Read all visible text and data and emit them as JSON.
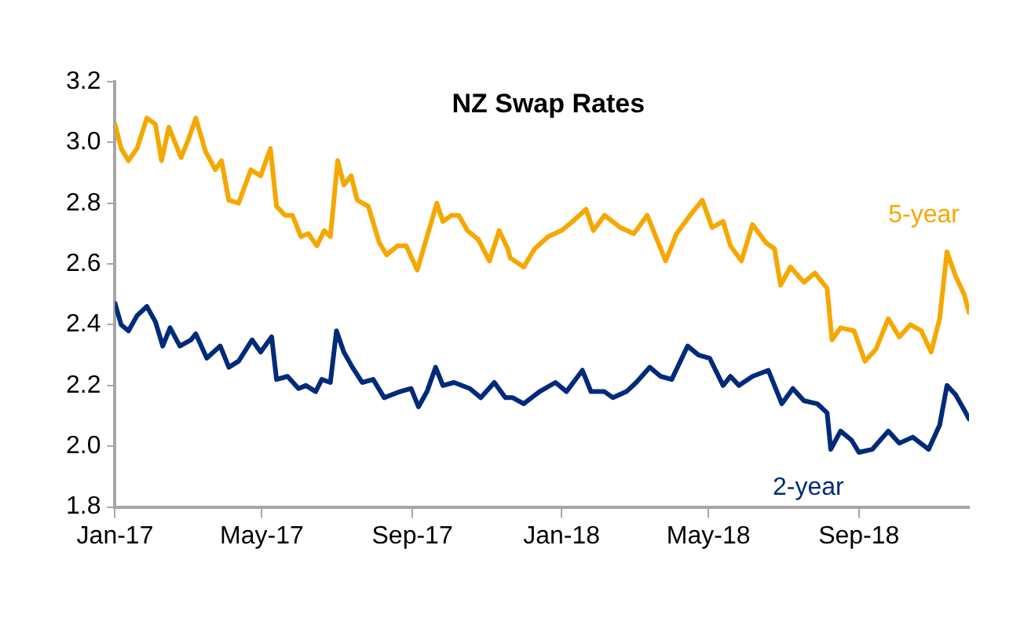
{
  "chart_data": {
    "type": "line",
    "title": "NZ Swap Rates",
    "xlim": [
      "2017-01-01",
      "2018-11-30"
    ],
    "xticks": [
      {
        "value": "2017-01-01",
        "label": "Jan-17"
      },
      {
        "value": "2017-05-01",
        "label": "May-17"
      },
      {
        "value": "2017-09-01",
        "label": "Sep-17"
      },
      {
        "value": "2018-01-01",
        "label": "Jan-18"
      },
      {
        "value": "2018-05-01",
        "label": "May-18"
      },
      {
        "value": "2018-09-01",
        "label": "Sep-18"
      }
    ],
    "ylim": [
      1.8,
      3.2
    ],
    "yticks": [
      {
        "value": 1.8,
        "label": "1.8"
      },
      {
        "value": 2,
        "label": "2.0"
      },
      {
        "value": 2.2,
        "label": "2.2"
      },
      {
        "value": 2.4,
        "label": "2.4"
      },
      {
        "value": 2.6,
        "label": "2.6"
      },
      {
        "value": 2.8,
        "label": "2.8"
      },
      {
        "value": 3,
        "label": "3.0"
      },
      {
        "value": 3.2,
        "label": "3.2"
      }
    ],
    "grid": false,
    "legend": false,
    "marker": "none",
    "line_style": "solid",
    "series": [
      {
        "name": "5-year",
        "color": "#f5a800",
        "x": [
          "2017-01-01",
          "2017-01-06",
          "2017-01-12",
          "2017-01-19",
          "2017-01-27",
          "2017-02-03",
          "2017-02-08",
          "2017-02-14",
          "2017-02-24",
          "2017-03-02",
          "2017-03-08",
          "2017-03-16",
          "2017-03-24",
          "2017-03-29",
          "2017-04-04",
          "2017-04-12",
          "2017-04-22",
          "2017-04-30",
          "2017-05-08",
          "2017-05-13",
          "2017-05-20",
          "2017-05-26",
          "2017-06-02",
          "2017-06-08",
          "2017-06-15",
          "2017-06-21",
          "2017-06-26",
          "2017-07-02",
          "2017-07-07",
          "2017-07-13",
          "2017-07-18",
          "2017-07-27",
          "2017-08-05",
          "2017-08-11",
          "2017-08-20",
          "2017-08-27",
          "2017-09-05",
          "2017-09-13",
          "2017-09-21",
          "2017-09-26",
          "2017-10-03",
          "2017-10-09",
          "2017-10-16",
          "2017-10-25",
          "2017-11-03",
          "2017-11-11",
          "2017-11-18",
          "2017-11-20",
          "2017-12-01",
          "2017-12-10",
          "2017-12-21",
          "2018-01-01",
          "2018-01-10",
          "2018-01-21",
          "2018-01-27",
          "2018-02-05",
          "2018-02-18",
          "2018-03-01",
          "2018-03-12",
          "2018-03-27",
          "2018-04-05",
          "2018-04-16",
          "2018-04-26",
          "2018-05-04",
          "2018-05-13",
          "2018-05-19",
          "2018-05-28",
          "2018-06-06",
          "2018-06-17",
          "2018-06-24",
          "2018-06-29",
          "2018-07-07",
          "2018-07-18",
          "2018-07-27",
          "2018-08-06",
          "2018-08-10",
          "2018-08-17",
          "2018-08-28",
          "2018-09-06",
          "2018-09-15",
          "2018-09-25",
          "2018-10-04",
          "2018-10-13",
          "2018-10-22",
          "2018-10-30",
          "2018-11-06",
          "2018-11-12",
          "2018-11-19",
          "2018-11-26",
          "2018-11-30"
        ],
        "values": [
          3.06,
          2.98,
          2.94,
          2.98,
          3.08,
          3.06,
          2.94,
          3.05,
          2.95,
          3.01,
          3.08,
          2.97,
          2.91,
          2.94,
          2.81,
          2.8,
          2.91,
          2.89,
          2.98,
          2.79,
          2.76,
          2.76,
          2.69,
          2.7,
          2.66,
          2.71,
          2.69,
          2.94,
          2.86,
          2.89,
          2.81,
          2.79,
          2.67,
          2.63,
          2.66,
          2.66,
          2.58,
          2.69,
          2.8,
          2.74,
          2.76,
          2.76,
          2.71,
          2.68,
          2.61,
          2.71,
          2.65,
          2.62,
          2.59,
          2.65,
          2.69,
          2.71,
          2.74,
          2.78,
          2.71,
          2.76,
          2.72,
          2.7,
          2.76,
          2.61,
          2.7,
          2.76,
          2.81,
          2.72,
          2.74,
          2.66,
          2.61,
          2.73,
          2.67,
          2.65,
          2.53,
          2.59,
          2.54,
          2.57,
          2.52,
          2.35,
          2.39,
          2.38,
          2.28,
          2.32,
          2.42,
          2.36,
          2.4,
          2.38,
          2.31,
          2.42,
          2.64,
          2.56,
          2.5,
          2.44
        ]
      },
      {
        "name": "2-year",
        "color": "#002a7a",
        "x": [
          "2017-01-01",
          "2017-01-06",
          "2017-01-12",
          "2017-01-19",
          "2017-01-27",
          "2017-02-03",
          "2017-02-09",
          "2017-02-15",
          "2017-02-23",
          "2017-03-04",
          "2017-03-08",
          "2017-03-17",
          "2017-03-28",
          "2017-04-04",
          "2017-04-12",
          "2017-04-23",
          "2017-04-30",
          "2017-05-09",
          "2017-05-13",
          "2017-05-22",
          "2017-05-31",
          "2017-06-06",
          "2017-06-14",
          "2017-06-19",
          "2017-06-26",
          "2017-07-01",
          "2017-07-07",
          "2017-07-14",
          "2017-07-22",
          "2017-07-31",
          "2017-08-09",
          "2017-08-22",
          "2017-08-31",
          "2017-09-06",
          "2017-09-13",
          "2017-09-20",
          "2017-09-26",
          "2017-10-05",
          "2017-10-18",
          "2017-10-27",
          "2017-11-07",
          "2017-11-16",
          "2017-11-22",
          "2017-12-01",
          "2017-12-14",
          "2017-12-27",
          "2018-01-05",
          "2018-01-18",
          "2018-01-25",
          "2018-02-05",
          "2018-02-12",
          "2018-02-23",
          "2018-03-03",
          "2018-03-14",
          "2018-03-23",
          "2018-04-01",
          "2018-04-14",
          "2018-04-23",
          "2018-05-02",
          "2018-05-13",
          "2018-05-19",
          "2018-05-26",
          "2018-06-06",
          "2018-06-19",
          "2018-06-30",
          "2018-07-09",
          "2018-07-18",
          "2018-07-29",
          "2018-08-06",
          "2018-08-09",
          "2018-08-17",
          "2018-08-26",
          "2018-09-01",
          "2018-09-12",
          "2018-09-25",
          "2018-10-04",
          "2018-10-15",
          "2018-10-28",
          "2018-11-06",
          "2018-11-12",
          "2018-11-19",
          "2018-11-26",
          "2018-11-30"
        ],
        "values": [
          2.47,
          2.4,
          2.38,
          2.43,
          2.46,
          2.41,
          2.33,
          2.39,
          2.33,
          2.35,
          2.37,
          2.29,
          2.33,
          2.26,
          2.28,
          2.35,
          2.31,
          2.36,
          2.22,
          2.23,
          2.19,
          2.2,
          2.18,
          2.22,
          2.21,
          2.38,
          2.31,
          2.26,
          2.21,
          2.22,
          2.16,
          2.18,
          2.19,
          2.13,
          2.18,
          2.26,
          2.2,
          2.21,
          2.19,
          2.16,
          2.21,
          2.16,
          2.16,
          2.14,
          2.18,
          2.21,
          2.18,
          2.25,
          2.18,
          2.18,
          2.16,
          2.18,
          2.21,
          2.26,
          2.23,
          2.22,
          2.33,
          2.3,
          2.29,
          2.2,
          2.23,
          2.2,
          2.23,
          2.25,
          2.14,
          2.19,
          2.15,
          2.14,
          2.11,
          1.99,
          2.05,
          2.02,
          1.98,
          1.99,
          2.05,
          2.01,
          2.03,
          1.99,
          2.07,
          2.2,
          2.17,
          2.12,
          2.09
        ]
      }
    ]
  }
}
